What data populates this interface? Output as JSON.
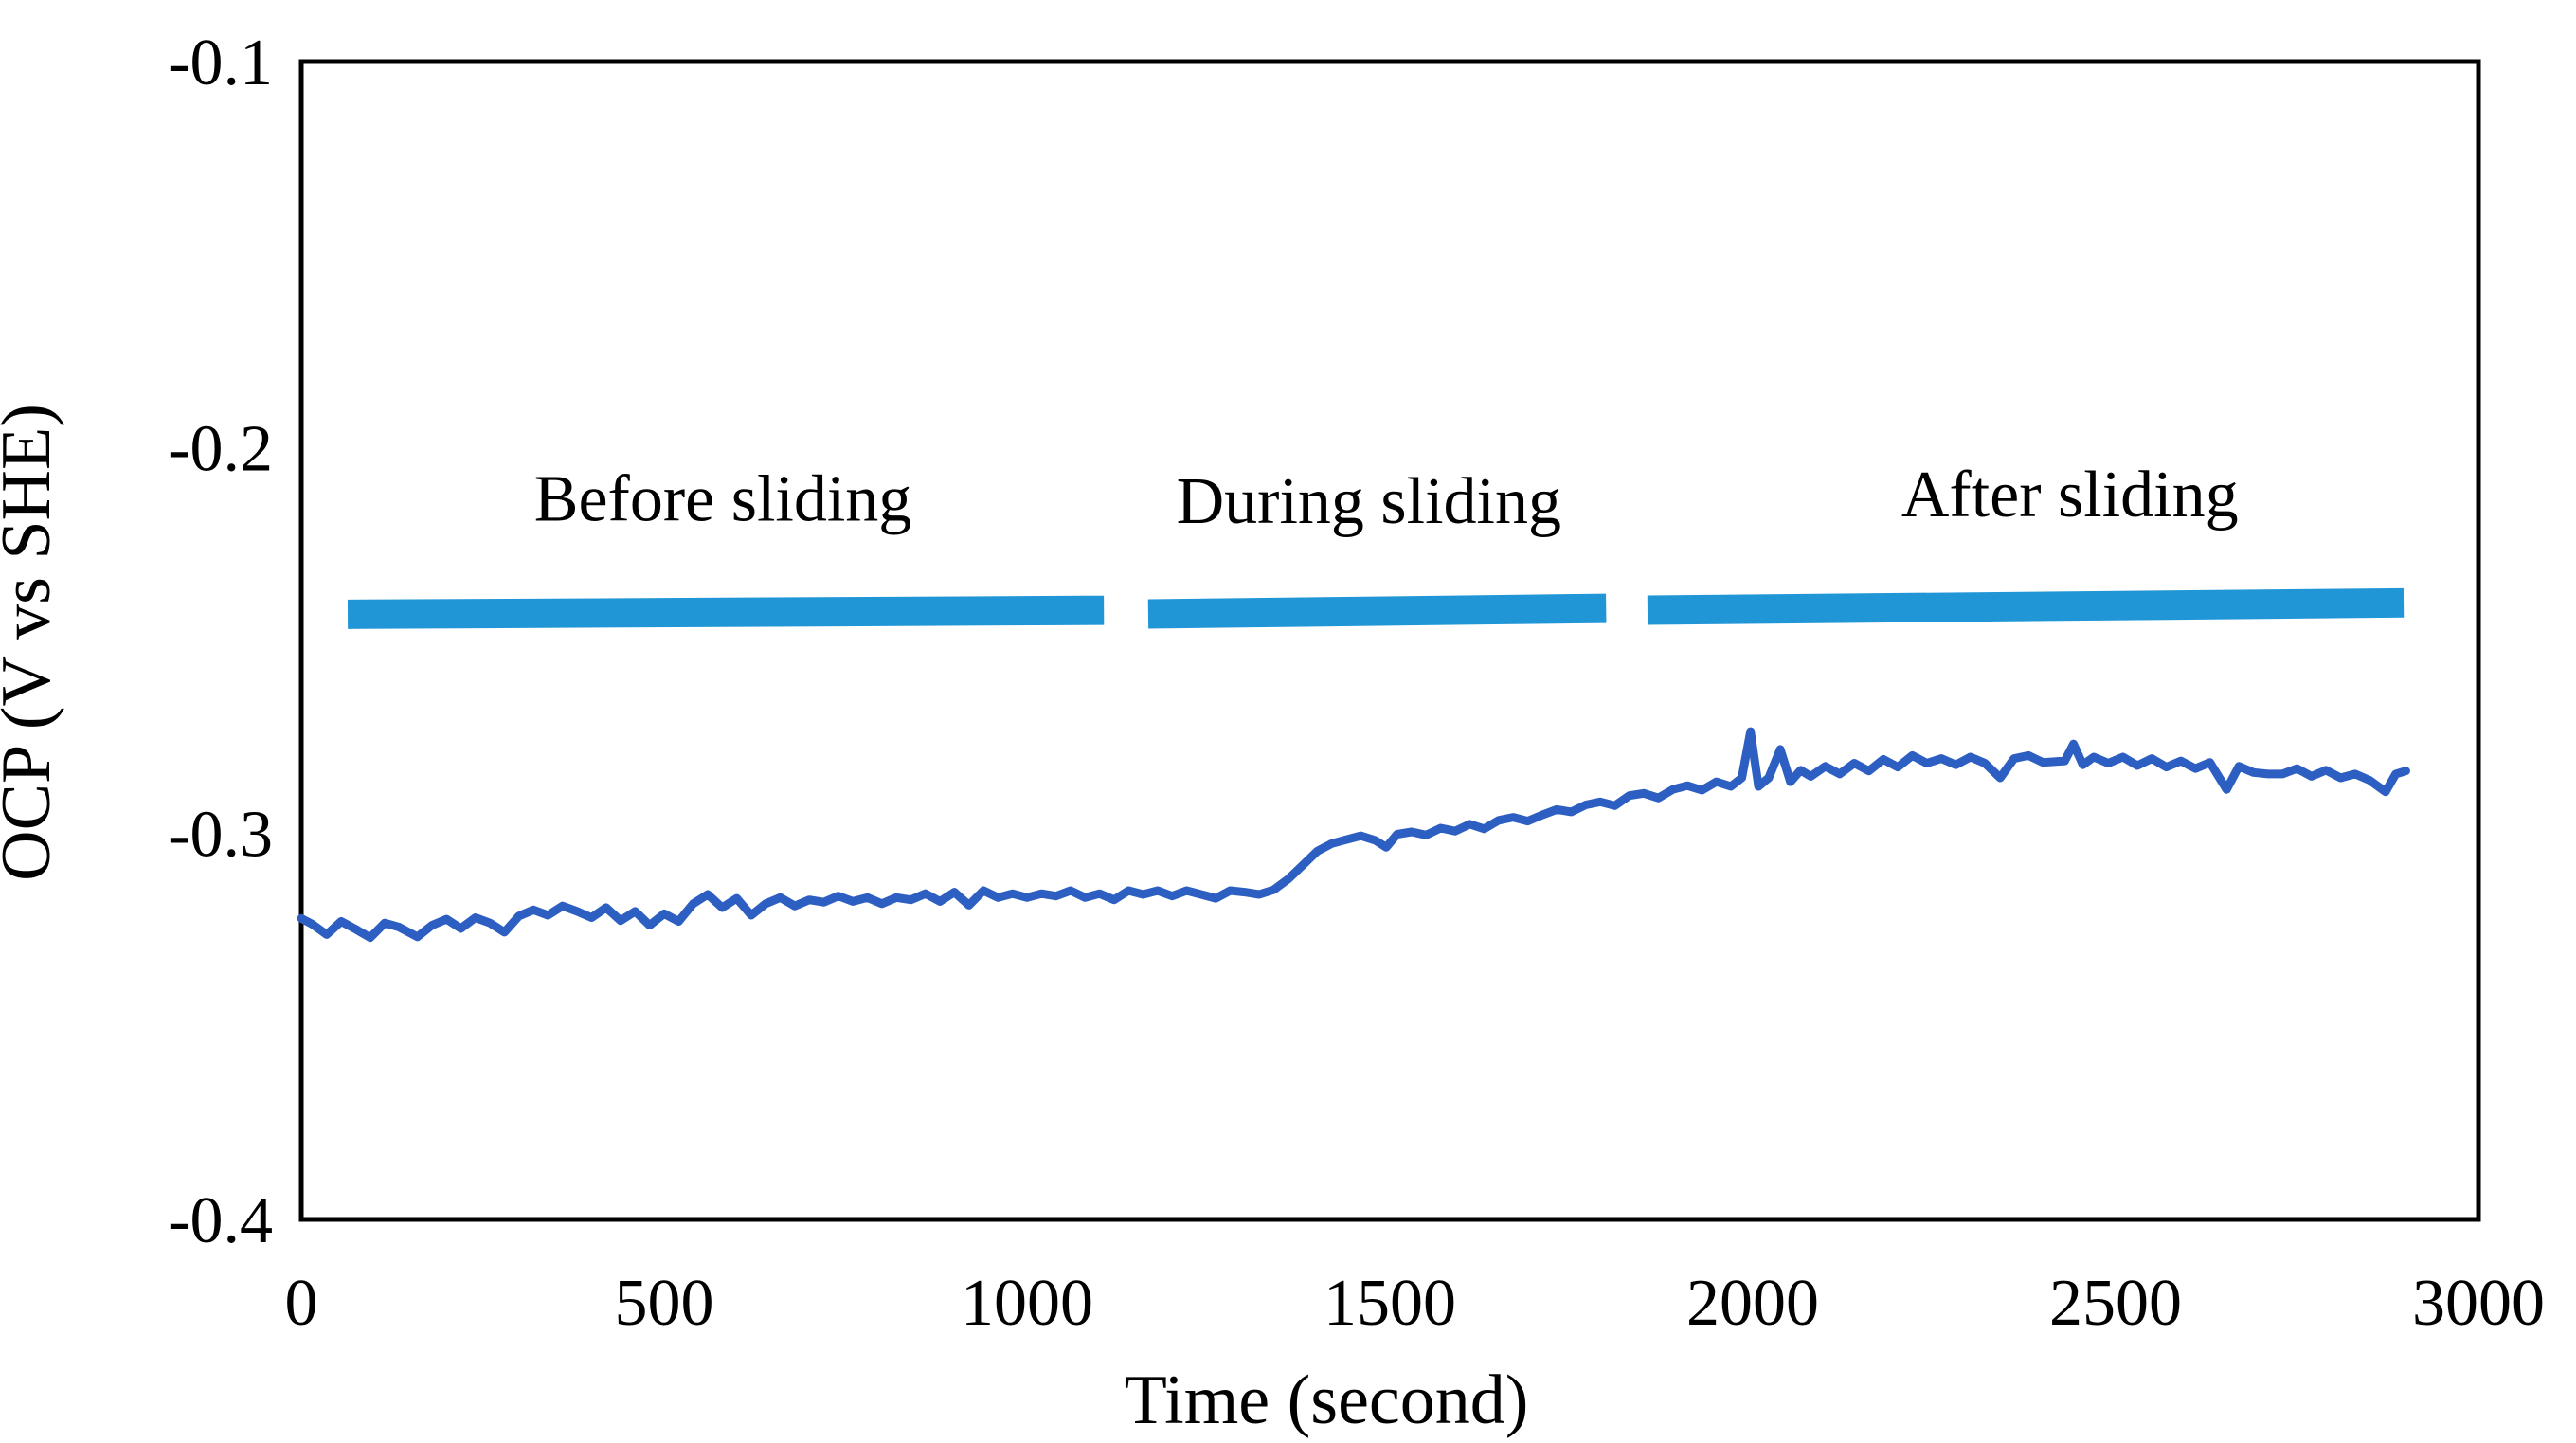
{
  "chart_data": {
    "type": "line",
    "title": "",
    "xlabel": "Time (second)",
    "ylabel": "OCP (V vs SHE)",
    "xlim": [
      0,
      3000
    ],
    "ylim": [
      -0.4,
      -0.1
    ],
    "xticks": [
      0,
      500,
      1000,
      1500,
      2000,
      2500,
      3000
    ],
    "yticks": [
      -0.1,
      -0.2,
      -0.3,
      -0.4
    ],
    "grid": false,
    "legend": "none",
    "line_color": "#2d5fc2",
    "bar_color": "#2196d6",
    "frame_color": "#000000",
    "phase_bars": [
      {
        "label": "Before sliding",
        "t_start": 64,
        "t_end": 1106,
        "v_center": -0.2427,
        "v_thickness": 0.0076,
        "label_t": 581,
        "label_v": -0.219
      },
      {
        "label": "During sliding",
        "t_start": 1167,
        "t_end": 1798,
        "v_center": -0.2424,
        "v_thickness": 0.0076,
        "label_t": 1471,
        "label_v": -0.2196
      },
      {
        "label": "After sliding",
        "t_start": 1855,
        "t_end": 2897,
        "v_center": -0.2412,
        "v_thickness": 0.0076,
        "label_t": 2437,
        "label_v": -0.2178
      }
    ],
    "series": [
      {
        "name": "OCP",
        "points": [
          [
            0,
            -0.322
          ],
          [
            15,
            -0.3235
          ],
          [
            35,
            -0.3262
          ],
          [
            55,
            -0.3228
          ],
          [
            75,
            -0.3248
          ],
          [
            95,
            -0.327
          ],
          [
            115,
            -0.3232
          ],
          [
            135,
            -0.3243
          ],
          [
            160,
            -0.3268
          ],
          [
            180,
            -0.3238
          ],
          [
            200,
            -0.3222
          ],
          [
            220,
            -0.3246
          ],
          [
            240,
            -0.3218
          ],
          [
            260,
            -0.3232
          ],
          [
            280,
            -0.3256
          ],
          [
            300,
            -0.3214
          ],
          [
            320,
            -0.3198
          ],
          [
            340,
            -0.3212
          ],
          [
            360,
            -0.3188
          ],
          [
            380,
            -0.3202
          ],
          [
            400,
            -0.3218
          ],
          [
            420,
            -0.3192
          ],
          [
            440,
            -0.3226
          ],
          [
            460,
            -0.3202
          ],
          [
            480,
            -0.3238
          ],
          [
            500,
            -0.3208
          ],
          [
            520,
            -0.3228
          ],
          [
            540,
            -0.3182
          ],
          [
            560,
            -0.3158
          ],
          [
            580,
            -0.3192
          ],
          [
            600,
            -0.3168
          ],
          [
            620,
            -0.3212
          ],
          [
            640,
            -0.3182
          ],
          [
            660,
            -0.3166
          ],
          [
            680,
            -0.3188
          ],
          [
            700,
            -0.3172
          ],
          [
            720,
            -0.3178
          ],
          [
            740,
            -0.3162
          ],
          [
            760,
            -0.3176
          ],
          [
            780,
            -0.3166
          ],
          [
            800,
            -0.3182
          ],
          [
            820,
            -0.3166
          ],
          [
            840,
            -0.3172
          ],
          [
            860,
            -0.3156
          ],
          [
            880,
            -0.3176
          ],
          [
            900,
            -0.3152
          ],
          [
            920,
            -0.3186
          ],
          [
            940,
            -0.3148
          ],
          [
            960,
            -0.3166
          ],
          [
            980,
            -0.3156
          ],
          [
            1000,
            -0.3166
          ],
          [
            1020,
            -0.3156
          ],
          [
            1040,
            -0.3162
          ],
          [
            1060,
            -0.3148
          ],
          [
            1080,
            -0.3166
          ],
          [
            1100,
            -0.3156
          ],
          [
            1120,
            -0.3172
          ],
          [
            1140,
            -0.3148
          ],
          [
            1160,
            -0.3158
          ],
          [
            1180,
            -0.3148
          ],
          [
            1200,
            -0.3162
          ],
          [
            1220,
            -0.3148
          ],
          [
            1240,
            -0.3158
          ],
          [
            1260,
            -0.3168
          ],
          [
            1280,
            -0.3148
          ],
          [
            1300,
            -0.3152
          ],
          [
            1320,
            -0.3158
          ],
          [
            1340,
            -0.3146
          ],
          [
            1360,
            -0.3118
          ],
          [
            1380,
            -0.3082
          ],
          [
            1400,
            -0.3046
          ],
          [
            1420,
            -0.3026
          ],
          [
            1440,
            -0.3016
          ],
          [
            1460,
            -0.3006
          ],
          [
            1480,
            -0.3018
          ],
          [
            1495,
            -0.3036
          ],
          [
            1510,
            -0.3002
          ],
          [
            1530,
            -0.2996
          ],
          [
            1550,
            -0.3004
          ],
          [
            1570,
            -0.2986
          ],
          [
            1590,
            -0.2994
          ],
          [
            1610,
            -0.2976
          ],
          [
            1630,
            -0.2988
          ],
          [
            1650,
            -0.2966
          ],
          [
            1670,
            -0.2958
          ],
          [
            1690,
            -0.2968
          ],
          [
            1710,
            -0.2952
          ],
          [
            1730,
            -0.2938
          ],
          [
            1750,
            -0.2944
          ],
          [
            1770,
            -0.2926
          ],
          [
            1790,
            -0.2918
          ],
          [
            1810,
            -0.2928
          ],
          [
            1830,
            -0.2902
          ],
          [
            1850,
            -0.2896
          ],
          [
            1870,
            -0.2908
          ],
          [
            1890,
            -0.2886
          ],
          [
            1910,
            -0.2876
          ],
          [
            1930,
            -0.2888
          ],
          [
            1950,
            -0.2866
          ],
          [
            1970,
            -0.2878
          ],
          [
            1985,
            -0.2856
          ],
          [
            1997,
            -0.2736
          ],
          [
            2008,
            -0.2878
          ],
          [
            2022,
            -0.2856
          ],
          [
            2038,
            -0.2782
          ],
          [
            2052,
            -0.2866
          ],
          [
            2066,
            -0.2836
          ],
          [
            2080,
            -0.2852
          ],
          [
            2100,
            -0.2826
          ],
          [
            2120,
            -0.2846
          ],
          [
            2140,
            -0.2818
          ],
          [
            2160,
            -0.2838
          ],
          [
            2180,
            -0.2808
          ],
          [
            2200,
            -0.2828
          ],
          [
            2220,
            -0.2798
          ],
          [
            2240,
            -0.2818
          ],
          [
            2260,
            -0.2806
          ],
          [
            2280,
            -0.2822
          ],
          [
            2300,
            -0.2802
          ],
          [
            2320,
            -0.2818
          ],
          [
            2341,
            -0.2856
          ],
          [
            2360,
            -0.2806
          ],
          [
            2380,
            -0.2798
          ],
          [
            2400,
            -0.2816
          ],
          [
            2430,
            -0.2812
          ],
          [
            2442,
            -0.2768
          ],
          [
            2455,
            -0.2822
          ],
          [
            2470,
            -0.2802
          ],
          [
            2490,
            -0.2818
          ],
          [
            2510,
            -0.2802
          ],
          [
            2530,
            -0.2824
          ],
          [
            2550,
            -0.2806
          ],
          [
            2570,
            -0.2828
          ],
          [
            2590,
            -0.2812
          ],
          [
            2610,
            -0.2832
          ],
          [
            2630,
            -0.2816
          ],
          [
            2653,
            -0.2886
          ],
          [
            2670,
            -0.2826
          ],
          [
            2690,
            -0.2842
          ],
          [
            2710,
            -0.2846
          ],
          [
            2730,
            -0.2846
          ],
          [
            2750,
            -0.2832
          ],
          [
            2770,
            -0.2852
          ],
          [
            2790,
            -0.2836
          ],
          [
            2810,
            -0.2856
          ],
          [
            2830,
            -0.2846
          ],
          [
            2850,
            -0.2862
          ],
          [
            2872,
            -0.2892
          ],
          [
            2886,
            -0.2846
          ],
          [
            2900,
            -0.2838
          ]
        ]
      }
    ]
  }
}
